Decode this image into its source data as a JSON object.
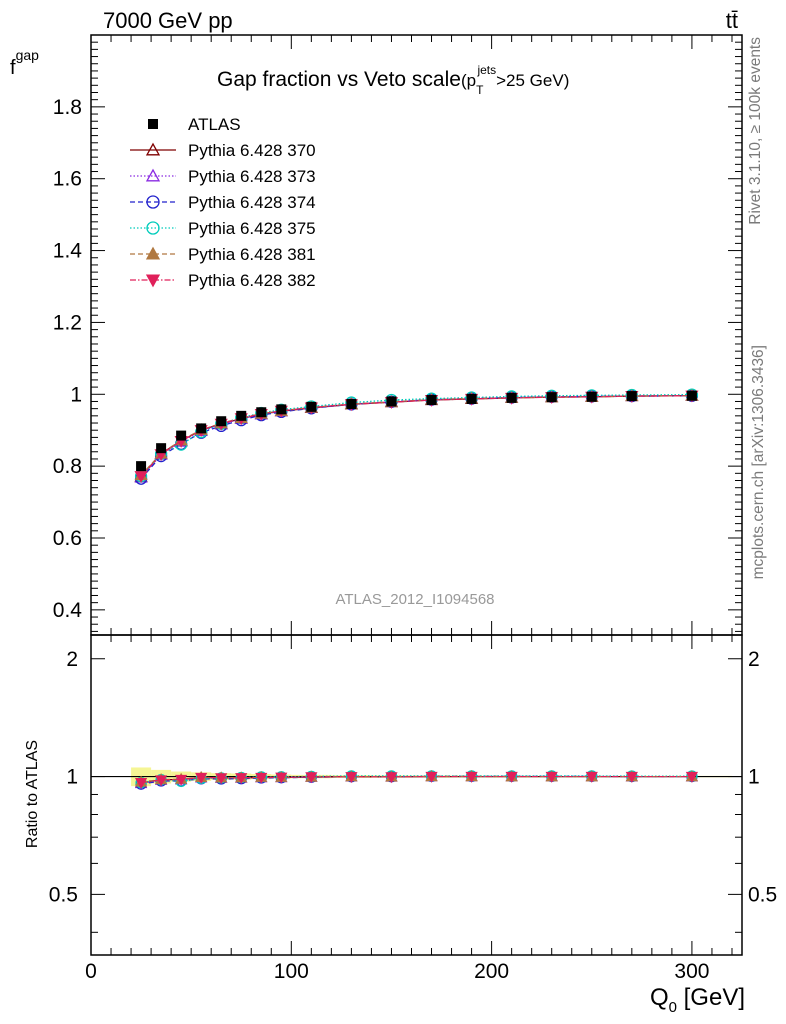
{
  "header": {
    "left": "7000 GeV pp",
    "right": "tt̄"
  },
  "side_labels": {
    "rivet": "Rivet 3.1.10, ≥ 100k events",
    "mcplots": "mcplots.cern.ch [arXiv:1306.3436]"
  },
  "watermark": "ATLAS_2012_I1094568",
  "chart_data": {
    "type": "scatter",
    "title": "Gap fraction vs Veto scale",
    "title_suffix": {
      "open": "(p",
      "sub": "T",
      "sup": "jets",
      "close": ">25 GeV)"
    },
    "ylabel": {
      "main": "f",
      "sub": "gap"
    },
    "xlabel": {
      "main": "Q",
      "sub": "0",
      "unit": " [GeV]"
    },
    "ratio_ylabel": "Ratio to ATLAS",
    "xlim": [
      0,
      325
    ],
    "ylim": [
      0.33,
      2.0
    ],
    "ratio_ylim": [
      0.35,
      2.3
    ],
    "x_ticks": [
      0,
      100,
      200,
      300
    ],
    "y_ticks": [
      0.4,
      0.6,
      0.8,
      1,
      1.2,
      1.4,
      1.6,
      1.8
    ],
    "y_tick_labels": [
      "0.4",
      "0.6",
      "0.8",
      "1",
      "1.2",
      "1.4",
      "1.6",
      "1.8"
    ],
    "ratio_y_ticks": [
      0.5,
      1,
      2
    ],
    "ratio_y_tick_labels": [
      "0.5",
      "1",
      "2"
    ],
    "x": [
      25,
      35,
      45,
      55,
      65,
      75,
      85,
      95,
      110,
      130,
      150,
      170,
      190,
      210,
      230,
      250,
      270,
      300
    ],
    "x_edges": [
      20,
      30,
      40,
      50,
      60,
      70,
      80,
      90,
      100,
      120,
      140,
      160,
      180,
      200,
      220,
      240,
      260,
      280,
      320
    ],
    "data": {
      "name": "ATLAS",
      "values": [
        0.8,
        0.85,
        0.885,
        0.905,
        0.925,
        0.94,
        0.95,
        0.958,
        0.965,
        0.973,
        0.98,
        0.984,
        0.987,
        0.99,
        0.992,
        0.993,
        0.995,
        0.996
      ],
      "band_rel": [
        0.055,
        0.04,
        0.03,
        0.025,
        0.02,
        0.018,
        0.015,
        0.012,
        0.01,
        0.008,
        0.007,
        0.006,
        0.005,
        0.005,
        0.004,
        0.004,
        0.004,
        0.004
      ]
    },
    "series": [
      {
        "name": "Pythia 6.428 370",
        "color": "#7f0000",
        "marker": "triangle-open",
        "dash": "",
        "values": [
          0.77,
          0.835,
          0.87,
          0.9,
          0.918,
          0.932,
          0.945,
          0.953,
          0.962,
          0.972,
          0.978,
          0.984,
          0.987,
          0.99,
          0.992,
          0.993,
          0.995,
          0.996
        ]
      },
      {
        "name": "Pythia 6.428 373",
        "color": "#8a2be2",
        "marker": "triangle-open",
        "dash": "1.5,2",
        "values": [
          0.768,
          0.832,
          0.868,
          0.898,
          0.916,
          0.932,
          0.944,
          0.953,
          0.963,
          0.973,
          0.979,
          0.985,
          0.988,
          0.991,
          0.993,
          0.994,
          0.995,
          0.996
        ]
      },
      {
        "name": "Pythia 6.428 374",
        "color": "#2222cc",
        "marker": "circle-open",
        "dash": "5,3",
        "values": [
          0.765,
          0.828,
          0.862,
          0.893,
          0.912,
          0.928,
          0.942,
          0.951,
          0.961,
          0.972,
          0.979,
          0.985,
          0.988,
          0.991,
          0.993,
          0.994,
          0.995,
          0.996
        ]
      },
      {
        "name": "Pythia 6.428 375",
        "color": "#00ccbb",
        "marker": "circle-open",
        "dash": "1.5,2",
        "values": [
          0.772,
          0.835,
          0.86,
          0.895,
          0.918,
          0.935,
          0.948,
          0.957,
          0.966,
          0.977,
          0.984,
          0.988,
          0.991,
          0.994,
          0.996,
          0.997,
          0.998,
          0.999
        ]
      },
      {
        "name": "Pythia 6.428 381",
        "color": "#b07840",
        "marker": "triangle-filled",
        "dash": "5,3",
        "values": [
          0.775,
          0.835,
          0.872,
          0.901,
          0.919,
          0.934,
          0.946,
          0.954,
          0.963,
          0.973,
          0.979,
          0.985,
          0.988,
          0.99,
          0.992,
          0.993,
          0.995,
          0.996
        ]
      },
      {
        "name": "Pythia 6.428 382",
        "color": "#e0205a",
        "marker": "triangle-down-filled",
        "dash": "6,2,1.5,2",
        "values": [
          0.772,
          0.833,
          0.87,
          0.9,
          0.918,
          0.933,
          0.945,
          0.954,
          0.963,
          0.972,
          0.978,
          0.984,
          0.987,
          0.99,
          0.992,
          0.993,
          0.995,
          0.996
        ]
      }
    ],
    "legend_placement": "top-left"
  }
}
